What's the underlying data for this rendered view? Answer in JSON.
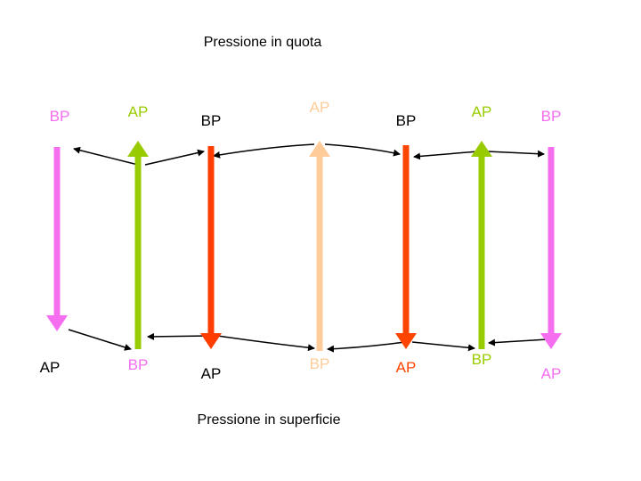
{
  "title_top": "Pressione in quota",
  "title_bottom": "Pressione in superficie",
  "colors": {
    "magenta": "#f56ef0",
    "green": "#99cc00",
    "red": "#ff3d00",
    "peach": "#ffcc99",
    "orange_red": "#ff4400",
    "black": "#000000"
  },
  "columns": [
    {
      "top_label": "BP",
      "bottom_label": "AP",
      "top_label_color": "#f56ef0",
      "bottom_label_color": "#000000",
      "arrow_color": "#f56ef0",
      "arrow_direction": "down"
    },
    {
      "top_label": "AP",
      "bottom_label": "BP",
      "top_label_color": "#99cc00",
      "bottom_label_color": "#f56ef0",
      "arrow_color": "#99cc00",
      "arrow_direction": "up"
    },
    {
      "top_label": "BP",
      "bottom_label": "AP",
      "top_label_color": "#000000",
      "bottom_label_color": "#000000",
      "arrow_color": "#ff3d00",
      "arrow_direction": "down"
    },
    {
      "top_label": "AP",
      "bottom_label": "BP",
      "top_label_color": "#ffcc99",
      "bottom_label_color": "#ffcc99",
      "arrow_color": "#ffcc99",
      "arrow_direction": "up"
    },
    {
      "top_label": "BP",
      "bottom_label": "AP",
      "top_label_color": "#000000",
      "bottom_label_color": "#ff4400",
      "arrow_color": "#ff4400",
      "arrow_direction": "down"
    },
    {
      "top_label": "AP",
      "bottom_label": "BP",
      "top_label_color": "#99cc00",
      "bottom_label_color": "#99cc00",
      "arrow_color": "#99cc00",
      "arrow_direction": "up"
    },
    {
      "top_label": "BP",
      "bottom_label": "AP",
      "top_label_color": "#f56ef0",
      "bottom_label_color": "#f56ef0",
      "arrow_color": "#f56ef0",
      "arrow_direction": "down"
    }
  ]
}
